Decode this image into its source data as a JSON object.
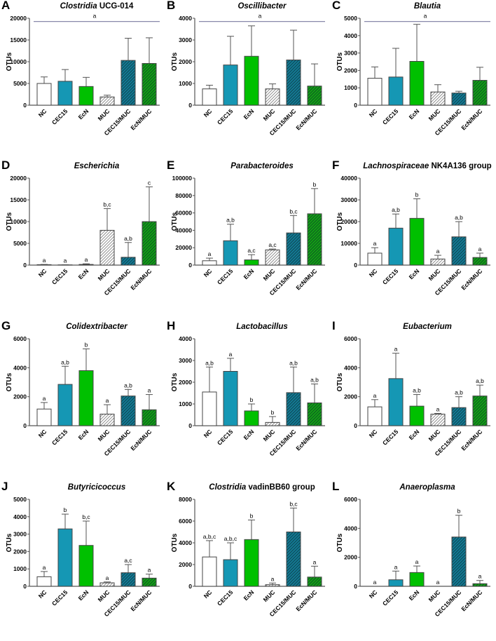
{
  "groups": [
    "NC",
    "CEC15",
    "EcN",
    "MUC",
    "CEC15/MUC",
    "EcN/MUC"
  ],
  "colors": {
    "NC": "#ffffff",
    "CEC15": "#1597b4",
    "EcN": "#00c000",
    "MUC": "#b0b0b0",
    "CEC15/MUC": "#137a94",
    "EcN/MUC": "#13a013"
  },
  "chart_data": [
    {
      "type": "bar",
      "letter": "A",
      "title_italic": "Clostridia",
      "title_rest": " UCG-014",
      "ylabel": "OTUs",
      "ylim": [
        0,
        20000
      ],
      "yticks": [
        0,
        5000,
        10000,
        15000,
        20000
      ],
      "values": [
        5000,
        5500,
        4300,
        1900,
        10300,
        9600
      ],
      "error_upper": [
        6500,
        8200,
        6400,
        2300,
        15400,
        15500
      ],
      "significance_line": "a",
      "letters": []
    },
    {
      "type": "bar",
      "letter": "B",
      "title_italic": "Oscillibacter",
      "title_rest": "",
      "ylabel": "OTUs",
      "ylim": [
        0,
        4000
      ],
      "yticks": [
        0,
        1000,
        2000,
        3000,
        4000
      ],
      "values": [
        750,
        1850,
        2250,
        750,
        2080,
        880
      ],
      "error_upper": [
        920,
        3170,
        3650,
        980,
        3450,
        1900
      ],
      "significance_line": "a",
      "letters": []
    },
    {
      "type": "bar",
      "letter": "C",
      "title_italic": "Blautia",
      "title_rest": "",
      "ylabel": "OTUs",
      "ylim": [
        0,
        5000
      ],
      "yticks": [
        0,
        1000,
        2000,
        3000,
        4000,
        5000
      ],
      "values": [
        1550,
        1620,
        2520,
        760,
        700,
        1430
      ],
      "error_upper": [
        2200,
        3270,
        4650,
        1180,
        800,
        2180
      ],
      "significance_line": "a",
      "letters": []
    },
    {
      "type": "bar",
      "letter": "D",
      "title_italic": "Escherichia",
      "title_rest": "",
      "ylabel": "OTUs",
      "ylim": [
        0,
        20000
      ],
      "yticks": [
        0,
        5000,
        10000,
        15000,
        20000
      ],
      "values": [
        100,
        50,
        150,
        8000,
        1800,
        10000
      ],
      "error_upper": [
        150,
        80,
        300,
        13000,
        5200,
        18000
      ],
      "letters": [
        "a",
        "a",
        "a",
        "b,c",
        "a,b",
        "c"
      ]
    },
    {
      "type": "bar",
      "letter": "E",
      "title_italic": "Parabacteroides",
      "title_rest": "",
      "ylabel": "OTUs",
      "ylim": [
        0,
        100000
      ],
      "yticks": [
        0,
        20000,
        40000,
        60000,
        80000,
        100000
      ],
      "values": [
        5000,
        28000,
        6000,
        17500,
        37000,
        59000
      ],
      "error_upper": [
        8000,
        47000,
        12000,
        18500,
        57000,
        88000
      ],
      "letters": [
        "a",
        "a,b",
        "a,c",
        "a,c",
        "b,c",
        "b"
      ]
    },
    {
      "type": "bar",
      "letter": "F",
      "title_italic": "Lachnospiraceae",
      "title_rest": " NK4A136 group",
      "ylabel": "OTUs",
      "ylim": [
        0,
        40000
      ],
      "yticks": [
        0,
        10000,
        20000,
        30000,
        40000
      ],
      "values": [
        5500,
        17000,
        21500,
        2800,
        13000,
        3500
      ],
      "error_upper": [
        8000,
        23500,
        30500,
        4500,
        20000,
        5500
      ],
      "letters": [
        "a",
        "a,b",
        "b",
        "a",
        "a,b",
        "a"
      ]
    },
    {
      "type": "bar",
      "letter": "G",
      "title_italic": "Colidextribacter",
      "title_rest": "",
      "ylabel": "OTUs",
      "ylim": [
        0,
        6000
      ],
      "yticks": [
        0,
        2000,
        4000,
        6000
      ],
      "values": [
        1150,
        2850,
        3800,
        800,
        2050,
        1100
      ],
      "error_upper": [
        1600,
        4100,
        5300,
        1450,
        2500,
        2150
      ],
      "letters": [
        "a",
        "a,b",
        "b",
        "a",
        "a,b",
        "a"
      ]
    },
    {
      "type": "bar",
      "letter": "H",
      "title_italic": "Lactobacillus",
      "title_rest": "",
      "ylabel": "OTUs",
      "ylim": [
        0,
        4000
      ],
      "yticks": [
        0,
        1000,
        2000,
        3000,
        4000
      ],
      "values": [
        1550,
        2500,
        680,
        150,
        1520,
        1050
      ],
      "error_upper": [
        2700,
        3100,
        1000,
        420,
        2700,
        1920
      ],
      "letters": [
        "a,b",
        "a",
        "b",
        "b",
        "a,b",
        "a,b"
      ]
    },
    {
      "type": "bar",
      "letter": "I",
      "title_italic": "Eubacterium",
      "title_rest": "",
      "ylabel": "OTUs",
      "ylim": [
        0,
        6000
      ],
      "yticks": [
        0,
        2000,
        4000,
        6000
      ],
      "values": [
        1300,
        3250,
        1350,
        800,
        1250,
        2050
      ],
      "error_upper": [
        1800,
        5000,
        2150,
        850,
        2000,
        2800
      ],
      "letters": [
        "a",
        "a",
        "a,b",
        "a",
        "a,b",
        "a,b"
      ]
    },
    {
      "type": "bar",
      "letter": "J",
      "title_italic": "Butyricicoccus",
      "title_rest": "",
      "ylabel": "OTUs",
      "ylim": [
        0,
        5000
      ],
      "yticks": [
        0,
        1000,
        2000,
        3000,
        4000,
        5000
      ],
      "values": [
        550,
        3300,
        2350,
        200,
        780,
        470
      ],
      "error_upper": [
        850,
        4150,
        3750,
        250,
        1250,
        700
      ],
      "letters": [
        "a",
        "b",
        "b,c",
        "a",
        "a,c",
        "a"
      ]
    },
    {
      "type": "bar",
      "letter": "K",
      "title_italic": "Clostridia",
      "title_rest": " vadinBB60 group",
      "ylabel": "OTUs",
      "ylim": [
        0,
        8000
      ],
      "yticks": [
        0,
        2000,
        4000,
        6000,
        8000
      ],
      "values": [
        2700,
        2450,
        4300,
        150,
        5000,
        850
      ],
      "error_upper": [
        4200,
        4000,
        6100,
        300,
        7200,
        1850
      ],
      "letters": [
        "a,b,c",
        "a,b,c",
        "b",
        "a",
        "b,c",
        "a"
      ]
    },
    {
      "type": "bar",
      "letter": "L",
      "title_italic": "Anaeroplasma",
      "title_rest": "",
      "ylabel": "OTUs",
      "ylim": [
        0,
        6000
      ],
      "yticks": [
        0,
        2000,
        4000,
        6000
      ],
      "values": [
        0,
        450,
        950,
        0,
        3400,
        180
      ],
      "error_upper": [
        0,
        1050,
        1400,
        0,
        4900,
        400
      ],
      "letters": [
        "a",
        "a",
        "a",
        "a",
        "b",
        "a"
      ]
    }
  ]
}
